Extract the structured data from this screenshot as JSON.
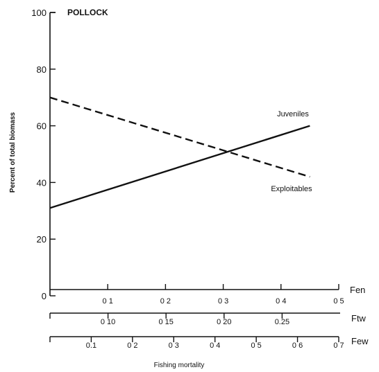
{
  "chart_data": {
    "type": "line",
    "title": "POLLOCK",
    "ylabel": "Percent of total biomass",
    "xlabel": "Fishing mortality",
    "ylim": [
      0,
      100
    ],
    "yticks": [
      0,
      20,
      40,
      60,
      80,
      100
    ],
    "x_axes": [
      {
        "name": "Fen",
        "range": [
          0,
          0.5
        ],
        "ticks": [
          0.1,
          0.2,
          0.3,
          0.4,
          0.5
        ],
        "tick_labels": [
          "0 1",
          "0 2",
          "0 3",
          "0 4",
          "0 5"
        ]
      },
      {
        "name": "Ftw",
        "range": [
          0.05,
          0.3
        ],
        "ticks": [
          0.1,
          0.15,
          0.2,
          0.25
        ],
        "tick_labels": [
          "0 10",
          "0 15",
          "0 20",
          "0.25"
        ]
      },
      {
        "name": "Few",
        "range": [
          0,
          0.7
        ],
        "ticks": [
          0.1,
          0.2,
          0.3,
          0.4,
          0.5,
          0.6,
          0.7
        ],
        "tick_labels": [
          "0.1",
          "0 2",
          "0 3",
          "0 4",
          "0 5",
          "0 6",
          "0 7"
        ]
      }
    ],
    "series": [
      {
        "name": "Juveniles",
        "style": "solid",
        "x_axis": "Fen",
        "x": [
          0,
          0.45
        ],
        "y": [
          31,
          60
        ]
      },
      {
        "name": "Exploitables",
        "style": "dashed",
        "x_axis": "Fen",
        "x": [
          0,
          0.45
        ],
        "y": [
          70,
          42
        ]
      }
    ],
    "grid": false,
    "legend": "none"
  }
}
